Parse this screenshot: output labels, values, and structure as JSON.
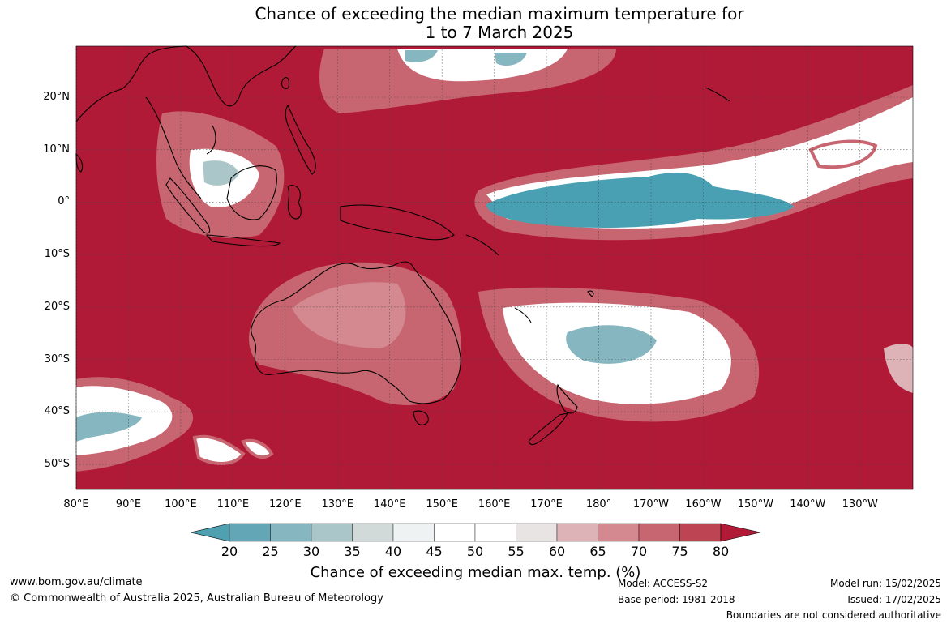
{
  "title_line1": "Chance of exceeding the median maximum temperature for",
  "title_line2": "1 to 7 March 2025",
  "lat_labels": [
    "20°N",
    "10°N",
    "0°",
    "10°S",
    "20°S",
    "30°S",
    "40°S",
    "50°S"
  ],
  "lon_labels": [
    "80°E",
    "90°E",
    "100°E",
    "110°E",
    "120°E",
    "130°E",
    "140°E",
    "150°E",
    "160°E",
    "170°E",
    "180°",
    "170°W",
    "160°W",
    "150°W",
    "140°W",
    "130°W"
  ],
  "colorbar": {
    "ticks": [
      "20",
      "25",
      "30",
      "35",
      "40",
      "45",
      "50",
      "55",
      "60",
      "65",
      "70",
      "75",
      "80"
    ],
    "colors": [
      "#63a6b5",
      "#86b7c0",
      "#aac6c8",
      "#d2dad9",
      "#eef2f2",
      "#ffffff",
      "#ffffff",
      "#e8e4e4",
      "#ddb3b7",
      "#d4888f",
      "#c76670",
      "#bd4553"
    ],
    "under_color": "#4fa1b2",
    "over_color": "#b11a36",
    "label": "Chance of exceeding median max. temp. (%)"
  },
  "colors": {
    "high": "#b11a36",
    "mid_high": "#c76670",
    "light_pink": "#ddb3b7",
    "near_median": "#ffffff",
    "low": "#4aa0b3"
  },
  "footer": {
    "website": "www.bom.gov.au/climate",
    "copyright": "© Commonwealth of Australia 2025, Australian Bureau of Meteorology",
    "model": "Model: ACCESS-S2",
    "base_period": "Base period: 1981-2018",
    "model_run": "Model run: 15/02/2025",
    "issued": "Issued: 17/02/2025",
    "boundaries": "Boundaries are not considered authoritative"
  }
}
